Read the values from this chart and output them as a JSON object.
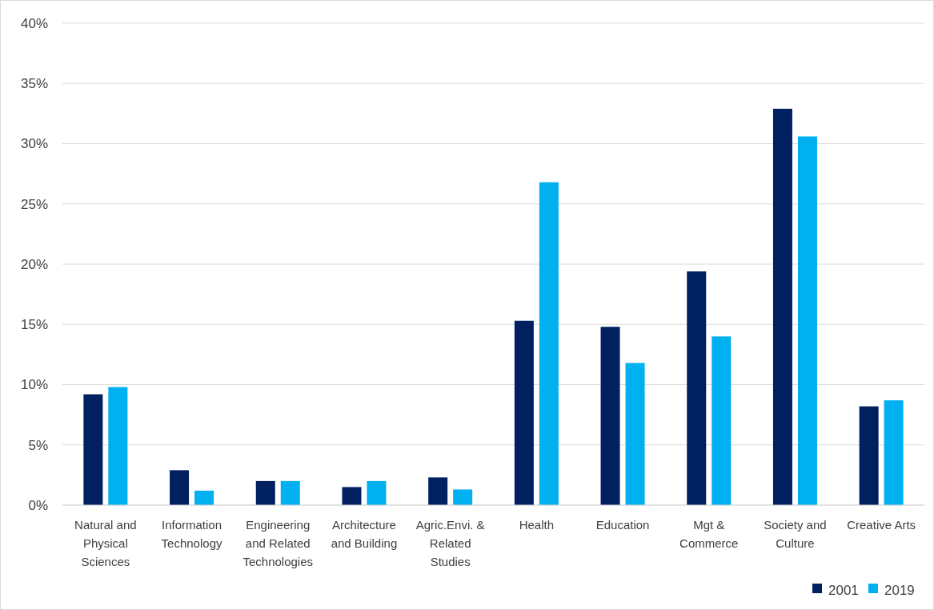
{
  "chart_data": {
    "type": "bar",
    "categories": [
      "Natural and Physical Sciences",
      "Information Technology",
      "Engineering and Related Technologies",
      "Architecture and Building",
      "Agric.Envi. & Related Studies",
      "Health",
      "Education",
      "Mgt & Commerce",
      "Society and Culture",
      "Creative Arts"
    ],
    "series": [
      {
        "name": "2001",
        "color": "#002060",
        "values": [
          9.2,
          2.9,
          2.0,
          1.5,
          2.3,
          15.3,
          14.8,
          19.4,
          32.9,
          8.2
        ]
      },
      {
        "name": "2019",
        "color": "#00b0f0",
        "values": [
          9.8,
          1.2,
          2.0,
          2.0,
          1.3,
          26.8,
          11.8,
          14.0,
          30.6,
          8.7
        ]
      }
    ],
    "ylim": [
      0,
      40
    ],
    "yticks": [
      {
        "value": 0,
        "label": "0%"
      },
      {
        "value": 5,
        "label": "5%"
      },
      {
        "value": 10,
        "label": "10%"
      },
      {
        "value": 15,
        "label": "15%"
      },
      {
        "value": 20,
        "label": "20%"
      },
      {
        "value": 25,
        "label": "25%"
      },
      {
        "value": 30,
        "label": "30%"
      },
      {
        "value": 35,
        "label": "35%"
      },
      {
        "value": 40,
        "label": "40%"
      }
    ],
    "grid": "y",
    "legend": "bottom right"
  }
}
